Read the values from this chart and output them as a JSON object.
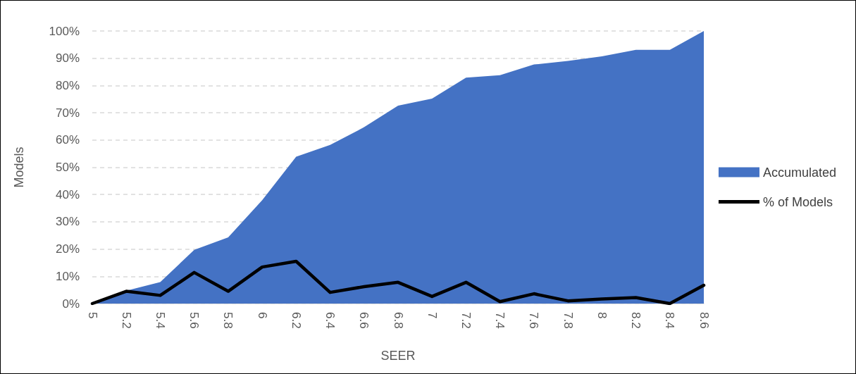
{
  "chart_data": {
    "type": "area",
    "xlabel": "SEER",
    "ylabel": "Models",
    "categories": [
      "5",
      "5.2",
      "5.4",
      "5.6",
      "5.8",
      "6",
      "6.2",
      "6.4",
      "6.6",
      "6.8",
      "7",
      "7.2",
      "7.4",
      "7.6",
      "7.8",
      "8",
      "8.2",
      "8.4",
      "8.6"
    ],
    "series": [
      {
        "name": "Accumulated",
        "color": "#4472c4",
        "values": [
          0,
          4.7,
          7.9,
          19.7,
          24.3,
          37.9,
          53.9,
          58.2,
          64.7,
          72.6,
          75.2,
          82.9,
          83.8,
          87.7,
          89.0,
          90.7,
          93.1,
          93.1,
          100
        ]
      },
      {
        "name": "% of Models",
        "type": "line",
        "color": "#000000",
        "values": [
          0,
          4.5,
          3.0,
          11.4,
          4.5,
          13.4,
          15.5,
          4.1,
          6.2,
          7.8,
          2.6,
          7.8,
          0.7,
          3.6,
          1.0,
          1.7,
          2.2,
          0,
          6.7
        ]
      }
    ],
    "ylim": [
      0,
      100
    ],
    "yticks": [
      {
        "value": 0,
        "label": "0%"
      },
      {
        "value": 10,
        "label": "10%"
      },
      {
        "value": 20,
        "label": "20%"
      },
      {
        "value": 30,
        "label": "30%"
      },
      {
        "value": 40,
        "label": "40%"
      },
      {
        "value": 50,
        "label": "50%"
      },
      {
        "value": 60,
        "label": "60%"
      },
      {
        "value": 70,
        "label": "70%"
      },
      {
        "value": 80,
        "label": "80%"
      },
      {
        "value": 90,
        "label": "90%"
      },
      {
        "value": 100,
        "label": "100%"
      }
    ],
    "grid": "y",
    "legend": "right",
    "marker": "none"
  }
}
